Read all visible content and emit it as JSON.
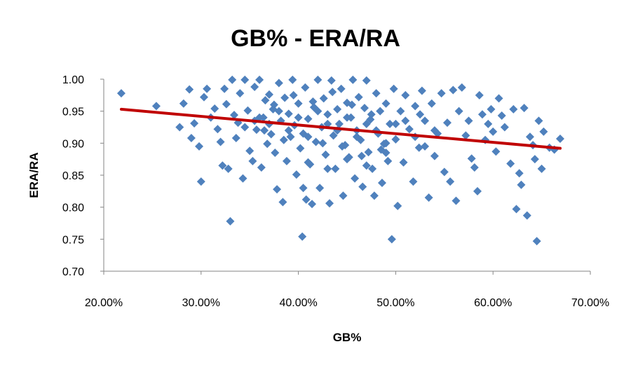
{
  "chart_data": {
    "type": "scatter",
    "title": "GB% - ERA/RA",
    "xlabel": "GB%",
    "ylabel": "ERA/RA",
    "xlim": [
      0.2,
      0.7
    ],
    "ylim": [
      0.7,
      1.0
    ],
    "x_ticks": [
      0.2,
      0.3,
      0.4,
      0.5,
      0.6,
      0.7
    ],
    "x_tick_labels": [
      "20.00%",
      "30.00%",
      "40.00%",
      "50.00%",
      "60.00%",
      "70.00%"
    ],
    "y_ticks": [
      0.7,
      0.75,
      0.8,
      0.85,
      0.9,
      0.95,
      1.0
    ],
    "y_tick_labels": [
      "0.70",
      "0.75",
      "0.80",
      "0.85",
      "0.90",
      "0.95",
      "1.00"
    ],
    "grid": false,
    "legend": "none",
    "series": [
      {
        "marker": "diamond",
        "color": "#4F81BD",
        "points": [
          [
            0.218,
            0.978
          ],
          [
            0.254,
            0.958
          ],
          [
            0.278,
            0.925
          ],
          [
            0.282,
            0.962
          ],
          [
            0.288,
            0.984
          ],
          [
            0.29,
            0.908
          ],
          [
            0.293,
            0.931
          ],
          [
            0.298,
            0.895
          ],
          [
            0.3,
            0.84
          ],
          [
            0.303,
            0.972
          ],
          [
            0.306,
            0.985
          ],
          [
            0.31,
            0.94
          ],
          [
            0.314,
            0.954
          ],
          [
            0.317,
            0.922
          ],
          [
            0.32,
            0.902
          ],
          [
            0.322,
            0.865
          ],
          [
            0.324,
            0.985
          ],
          [
            0.326,
            0.961
          ],
          [
            0.328,
            0.86
          ],
          [
            0.33,
            0.778
          ],
          [
            0.332,
            0.999
          ],
          [
            0.334,
            0.944
          ],
          [
            0.336,
            0.908
          ],
          [
            0.338,
            0.932
          ],
          [
            0.34,
            0.978
          ],
          [
            0.343,
            0.845
          ],
          [
            0.345,
            0.999
          ],
          [
            0.348,
            0.951
          ],
          [
            0.35,
            0.888
          ],
          [
            0.353,
            0.872
          ],
          [
            0.355,
            0.988
          ],
          [
            0.357,
            0.921
          ],
          [
            0.36,
            0.999
          ],
          [
            0.362,
            0.862
          ],
          [
            0.364,
            0.94
          ],
          [
            0.366,
            0.967
          ],
          [
            0.368,
            0.899
          ],
          [
            0.37,
            0.976
          ],
          [
            0.372,
            0.914
          ],
          [
            0.374,
            0.953
          ],
          [
            0.376,
            0.885
          ],
          [
            0.378,
            0.828
          ],
          [
            0.38,
            0.994
          ],
          [
            0.382,
            0.935
          ],
          [
            0.384,
            0.808
          ],
          [
            0.386,
            0.971
          ],
          [
            0.388,
            0.872
          ],
          [
            0.39,
            0.946
          ],
          [
            0.392,
            0.91
          ],
          [
            0.394,
            0.999
          ],
          [
            0.396,
            0.928
          ],
          [
            0.398,
            0.851
          ],
          [
            0.4,
            0.962
          ],
          [
            0.402,
            0.892
          ],
          [
            0.404,
            0.754
          ],
          [
            0.405,
            0.83
          ],
          [
            0.407,
            0.987
          ],
          [
            0.408,
            0.812
          ],
          [
            0.41,
            0.938
          ],
          [
            0.412,
            0.867
          ],
          [
            0.414,
            0.805
          ],
          [
            0.416,
            0.956
          ],
          [
            0.418,
            0.902
          ],
          [
            0.42,
            0.999
          ],
          [
            0.422,
            0.83
          ],
          [
            0.424,
            0.925
          ],
          [
            0.426,
            0.97
          ],
          [
            0.428,
            0.882
          ],
          [
            0.43,
            0.945
          ],
          [
            0.432,
            0.806
          ],
          [
            0.434,
            0.998
          ],
          [
            0.436,
            0.912
          ],
          [
            0.438,
            0.86
          ],
          [
            0.44,
            0.953
          ],
          [
            0.442,
            0.93
          ],
          [
            0.444,
            0.985
          ],
          [
            0.446,
            0.818
          ],
          [
            0.448,
            0.897
          ],
          [
            0.45,
            0.963
          ],
          [
            0.452,
            0.878
          ],
          [
            0.454,
            0.94
          ],
          [
            0.456,
            0.999
          ],
          [
            0.458,
            0.845
          ],
          [
            0.46,
            0.92
          ],
          [
            0.462,
            0.972
          ],
          [
            0.464,
            0.905
          ],
          [
            0.466,
            0.832
          ],
          [
            0.468,
            0.955
          ],
          [
            0.47,
            0.998
          ],
          [
            0.472,
            0.886
          ],
          [
            0.474,
            0.937
          ],
          [
            0.476,
            0.86
          ],
          [
            0.478,
            0.818
          ],
          [
            0.48,
            0.978
          ],
          [
            0.482,
            0.915
          ],
          [
            0.484,
            0.95
          ],
          [
            0.486,
            0.838
          ],
          [
            0.488,
            0.899
          ],
          [
            0.49,
            0.962
          ],
          [
            0.492,
            0.872
          ],
          [
            0.494,
            0.93
          ],
          [
            0.496,
            0.75
          ],
          [
            0.498,
            0.985
          ],
          [
            0.5,
            0.906
          ],
          [
            0.502,
            0.802
          ],
          [
            0.505,
            0.95
          ],
          [
            0.508,
            0.87
          ],
          [
            0.51,
            0.975
          ],
          [
            0.514,
            0.922
          ],
          [
            0.518,
            0.84
          ],
          [
            0.52,
            0.958
          ],
          [
            0.524,
            0.893
          ],
          [
            0.527,
            0.982
          ],
          [
            0.53,
            0.935
          ],
          [
            0.534,
            0.815
          ],
          [
            0.537,
            0.962
          ],
          [
            0.54,
            0.88
          ],
          [
            0.543,
            0.915
          ],
          [
            0.547,
            0.978
          ],
          [
            0.55,
            0.855
          ],
          [
            0.553,
            0.932
          ],
          [
            0.556,
            0.84
          ],
          [
            0.559,
            0.983
          ],
          [
            0.562,
            0.81
          ],
          [
            0.565,
            0.95
          ],
          [
            0.568,
            0.987
          ],
          [
            0.572,
            0.912
          ],
          [
            0.575,
            0.935
          ],
          [
            0.578,
            0.876
          ],
          [
            0.581,
            0.862
          ],
          [
            0.584,
            0.825
          ],
          [
            0.586,
            0.975
          ],
          [
            0.589,
            0.945
          ],
          [
            0.592,
            0.905
          ],
          [
            0.595,
            0.93
          ],
          [
            0.598,
            0.953
          ],
          [
            0.6,
            0.918
          ],
          [
            0.603,
            0.887
          ],
          [
            0.606,
            0.97
          ],
          [
            0.609,
            0.943
          ],
          [
            0.612,
            0.925
          ],
          [
            0.618,
            0.868
          ],
          [
            0.621,
            0.953
          ],
          [
            0.624,
            0.797
          ],
          [
            0.627,
            0.853
          ],
          [
            0.629,
            0.835
          ],
          [
            0.632,
            0.955
          ],
          [
            0.635,
            0.787
          ],
          [
            0.638,
            0.91
          ],
          [
            0.641,
            0.897
          ],
          [
            0.643,
            0.875
          ],
          [
            0.645,
            0.747
          ],
          [
            0.647,
            0.935
          ],
          [
            0.65,
            0.86
          ],
          [
            0.652,
            0.918
          ],
          [
            0.658,
            0.893
          ],
          [
            0.663,
            0.89
          ],
          [
            0.669,
            0.907
          ],
          [
            0.36,
            0.94
          ],
          [
            0.37,
            0.93
          ],
          [
            0.38,
            0.95
          ],
          [
            0.39,
            0.92
          ],
          [
            0.4,
            0.94
          ],
          [
            0.41,
            0.91
          ],
          [
            0.42,
            0.95
          ],
          [
            0.43,
            0.93
          ],
          [
            0.44,
            0.92
          ],
          [
            0.45,
            0.94
          ],
          [
            0.46,
            0.91
          ],
          [
            0.47,
            0.93
          ],
          [
            0.48,
            0.92
          ],
          [
            0.49,
            0.9
          ],
          [
            0.5,
            0.93
          ],
          [
            0.375,
            0.96
          ],
          [
            0.395,
            0.975
          ],
          [
            0.415,
            0.965
          ],
          [
            0.435,
            0.98
          ],
          [
            0.455,
            0.96
          ],
          [
            0.475,
            0.945
          ],
          [
            0.385,
            0.905
          ],
          [
            0.405,
            0.915
          ],
          [
            0.425,
            0.9
          ],
          [
            0.445,
            0.895
          ],
          [
            0.465,
            0.88
          ],
          [
            0.485,
            0.89
          ],
          [
            0.365,
            0.92
          ],
          [
            0.355,
            0.935
          ],
          [
            0.345,
            0.925
          ],
          [
            0.41,
            0.87
          ],
          [
            0.43,
            0.86
          ],
          [
            0.45,
            0.875
          ],
          [
            0.47,
            0.865
          ],
          [
            0.49,
            0.885
          ],
          [
            0.52,
            0.91
          ],
          [
            0.53,
            0.895
          ],
          [
            0.54,
            0.92
          ],
          [
            0.51,
            0.935
          ],
          [
            0.525,
            0.945
          ]
        ]
      }
    ],
    "trendline": {
      "type": "linear",
      "color": "#C00000",
      "points": [
        [
          0.218,
          0.953
        ],
        [
          0.669,
          0.892
        ]
      ]
    }
  }
}
